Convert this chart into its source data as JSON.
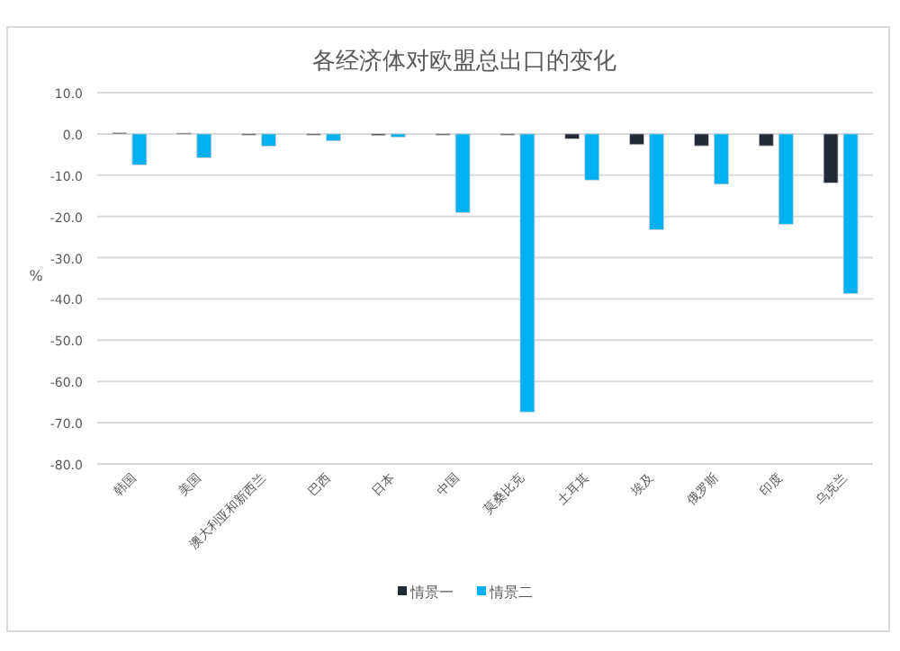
{
  "chart_data": {
    "type": "bar",
    "title": "各经济体对欧盟总出口的变化",
    "ylabel": "%",
    "categories": [
      "韩国",
      "美国",
      "澳大利亚和新西兰",
      "巴西",
      "日本",
      "中国",
      "莫桑比克",
      "土耳其",
      "埃及",
      "俄罗斯",
      "印度",
      "乌克兰"
    ],
    "series": [
      {
        "name": "情景一",
        "color": "#222a35",
        "values": [
          0.3,
          0.2,
          -0.3,
          -0.3,
          -0.4,
          -0.3,
          -0.3,
          -1.2,
          -2.6,
          -2.9,
          -2.9,
          -11.9
        ]
      },
      {
        "name": "情景二",
        "color": "#00b0f0",
        "values": [
          -7.5,
          -5.8,
          -3.0,
          -1.7,
          -0.8,
          -19.1,
          -67.4,
          -11.2,
          -23.2,
          -12.2,
          -21.9,
          -38.7
        ]
      }
    ],
    "ylim": [
      -80,
      10
    ],
    "yticks": [
      {
        "value": 10,
        "label": "10.0"
      },
      {
        "value": 0,
        "label": "0.0"
      },
      {
        "value": -10,
        "label": "-10.0"
      },
      {
        "value": -20,
        "label": "-20.0"
      },
      {
        "value": -30,
        "label": "-30.0"
      },
      {
        "value": -40,
        "label": "-40.0"
      },
      {
        "value": -50,
        "label": "-50.0"
      },
      {
        "value": -60,
        "label": "-60.0"
      },
      {
        "value": -70,
        "label": "-70.0"
      },
      {
        "value": -80,
        "label": "-80.0"
      }
    ],
    "grid": "y",
    "legend": "bottom"
  }
}
